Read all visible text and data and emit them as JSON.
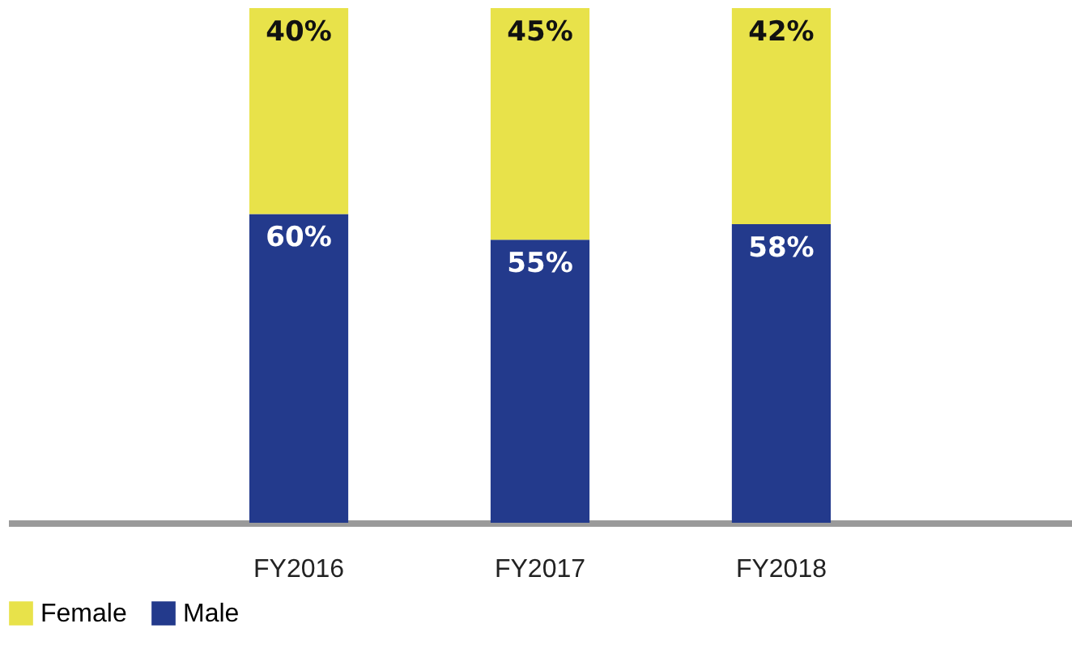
{
  "chart_data": {
    "type": "bar",
    "stacked": true,
    "categories": [
      "FY2016",
      "FY2017",
      "FY2018"
    ],
    "ylim": [
      0,
      100
    ],
    "data_labels": true,
    "legend": "bottom",
    "grid": false,
    "tick_labels": "x",
    "series": [
      {
        "name": "Male",
        "color": "#233a8c",
        "values": [
          60,
          55,
          58
        ],
        "value_labels": [
          "60%",
          "55%",
          "58%"
        ]
      },
      {
        "name": "Female",
        "color": "#e8e24a",
        "values": [
          40,
          45,
          42
        ],
        "value_labels": [
          "40%",
          "45%",
          "42%"
        ]
      }
    ]
  }
}
